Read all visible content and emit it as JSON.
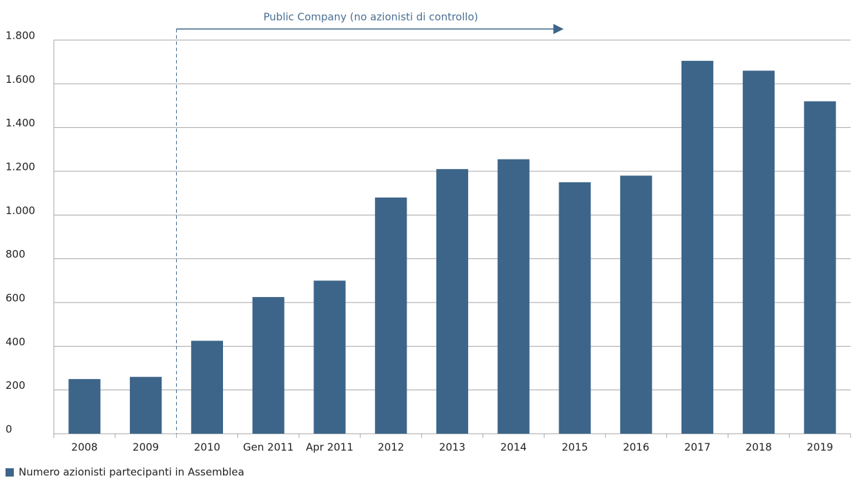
{
  "chart_data": {
    "type": "bar",
    "annotation": "Public Company (no azionisti di controllo)",
    "categories": [
      "2008",
      "2009",
      "2010",
      "Gen 2011",
      "Apr 2011",
      "2012",
      "2013",
      "2014",
      "2015",
      "2016",
      "2017",
      "2018",
      "2019"
    ],
    "series": [
      {
        "name": "Numero azionisti partecipanti in Assemblea",
        "color": "#3d6589",
        "values": [
          250,
          260,
          425,
          625,
          700,
          1080,
          1210,
          1255,
          1150,
          1180,
          1705,
          1660,
          1520
        ]
      }
    ],
    "ylim": [
      0,
      1800
    ],
    "yticks": [
      0,
      200,
      400,
      600,
      800,
      {
        "value": 1000,
        "label": "1.000"
      },
      {
        "value": 1200,
        "label": "1.200"
      },
      {
        "value": 1400,
        "label": "1.400"
      },
      {
        "value": 1600,
        "label": "1.600"
      },
      {
        "value": 1800,
        "label": "1.800"
      }
    ],
    "grid": true,
    "legend": "bottom-left"
  }
}
